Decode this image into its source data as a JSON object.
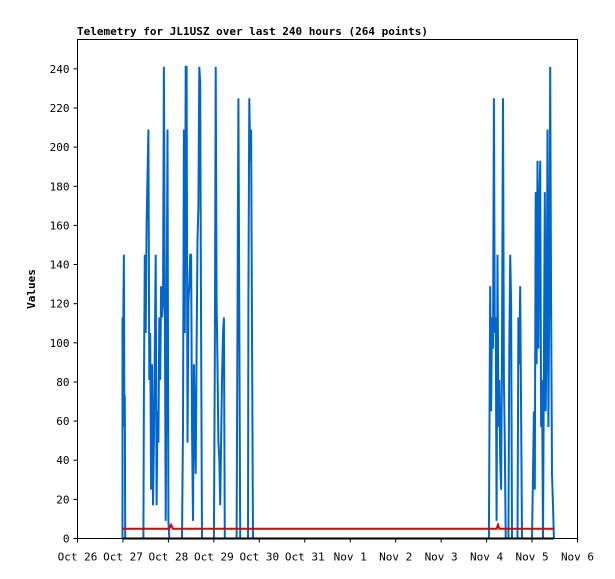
{
  "chart_data": {
    "type": "line",
    "title": "Telemetry for JL1USZ over last 240 hours (264 points)",
    "ylabel": "Values",
    "xlabel": "",
    "x_ticks": [
      "Oct 26",
      "Oct 27",
      "Oct 28",
      "Oct 29",
      "Oct 30",
      "Oct 31",
      "Nov 1",
      "Nov 2",
      "Nov 3",
      "Nov 4",
      "Nov 5",
      "Nov 6"
    ],
    "y_ticks": [
      "0",
      "20",
      "40",
      "60",
      "80",
      "100",
      "120",
      "140",
      "160",
      "180",
      "200",
      "220",
      "240"
    ],
    "xlim": [
      0,
      11
    ],
    "ylim": [
      0,
      255
    ],
    "grid": false,
    "legend": "none",
    "colors": {
      "blue_series": "#0066cc",
      "red_series": "#dd0000",
      "black_series": "#000000"
    },
    "series": [
      {
        "color": "#0066cc",
        "points": [
          [
            0.99,
            0
          ],
          [
            0.99,
            113
          ],
          [
            1.0,
            57
          ],
          [
            1.01,
            121
          ],
          [
            1.02,
            145
          ],
          [
            1.03,
            65
          ],
          [
            1.04,
            73
          ],
          [
            1.05,
            0
          ],
          [
            1.45,
            0
          ],
          [
            1.46,
            73
          ],
          [
            1.48,
            145
          ],
          [
            1.5,
            105
          ],
          [
            1.52,
            161
          ],
          [
            1.54,
            185
          ],
          [
            1.56,
            209
          ],
          [
            1.58,
            81
          ],
          [
            1.6,
            105
          ],
          [
            1.62,
            25
          ],
          [
            1.64,
            89
          ],
          [
            1.66,
            17
          ],
          [
            1.68,
            49
          ],
          [
            1.7,
            97
          ],
          [
            1.72,
            145
          ],
          [
            1.74,
            17
          ],
          [
            1.76,
            65
          ],
          [
            1.78,
            49
          ],
          [
            1.8,
            113
          ],
          [
            1.82,
            81
          ],
          [
            1.84,
            129
          ],
          [
            1.86,
            113
          ],
          [
            1.88,
            121
          ],
          [
            1.9,
            241
          ],
          [
            1.92,
            121
          ],
          [
            1.94,
            9
          ],
          [
            1.96,
            105
          ],
          [
            1.98,
            209
          ],
          [
            2.0,
            9
          ],
          [
            2.02,
            0
          ],
          [
            2.3,
            0
          ],
          [
            2.32,
            57
          ],
          [
            2.34,
            209
          ],
          [
            2.36,
            105
          ],
          [
            2.38,
            241
          ],
          [
            2.4,
            241
          ],
          [
            2.42,
            49
          ],
          [
            2.44,
            121
          ],
          [
            2.46,
            129
          ],
          [
            2.48,
            145
          ],
          [
            2.5,
            145
          ],
          [
            2.52,
            57
          ],
          [
            2.54,
            9
          ],
          [
            2.56,
            89
          ],
          [
            2.58,
            57
          ],
          [
            2.6,
            33
          ],
          [
            2.62,
            97
          ],
          [
            2.64,
            153
          ],
          [
            2.66,
            169
          ],
          [
            2.68,
            241
          ],
          [
            2.7,
            233
          ],
          [
            2.72,
            105
          ],
          [
            2.74,
            0
          ],
          [
            3.0,
            0
          ],
          [
            3.02,
            89
          ],
          [
            3.04,
            241
          ],
          [
            3.06,
            121
          ],
          [
            3.08,
            89
          ],
          [
            3.1,
            49
          ],
          [
            3.12,
            41
          ],
          [
            3.14,
            17
          ],
          [
            3.16,
            49
          ],
          [
            3.18,
            81
          ],
          [
            3.2,
            105
          ],
          [
            3.22,
            113
          ],
          [
            3.24,
            0
          ],
          [
            3.5,
            0
          ],
          [
            3.52,
            113
          ],
          [
            3.54,
            225
          ],
          [
            3.56,
            113
          ],
          [
            3.58,
            0
          ],
          [
            3.75,
            0
          ],
          [
            3.76,
            121
          ],
          [
            3.78,
            225
          ],
          [
            3.8,
            193
          ],
          [
            3.82,
            209
          ],
          [
            3.84,
            105
          ],
          [
            3.86,
            0
          ],
          [
            9.05,
            0
          ],
          [
            9.06,
            41
          ],
          [
            9.08,
            129
          ],
          [
            9.1,
            65
          ],
          [
            9.12,
            113
          ],
          [
            9.14,
            97
          ],
          [
            9.16,
            225
          ],
          [
            9.18,
            105
          ],
          [
            9.2,
            113
          ],
          [
            9.22,
            9
          ],
          [
            9.24,
            145
          ],
          [
            9.26,
            57
          ],
          [
            9.28,
            81
          ],
          [
            9.3,
            41
          ],
          [
            9.32,
            25
          ],
          [
            9.34,
            97
          ],
          [
            9.36,
            225
          ],
          [
            9.38,
            81
          ],
          [
            9.4,
            49
          ],
          [
            9.42,
            0
          ],
          [
            9.48,
            0
          ],
          [
            9.5,
            97
          ],
          [
            9.52,
            145
          ],
          [
            9.54,
            121
          ],
          [
            9.56,
            0
          ],
          [
            9.68,
            0
          ],
          [
            9.7,
            113
          ],
          [
            9.72,
            89
          ],
          [
            9.74,
            129
          ],
          [
            9.76,
            65
          ],
          [
            9.78,
            0
          ],
          [
            10.0,
            0
          ],
          [
            10.02,
            33
          ],
          [
            10.04,
            65
          ],
          [
            10.06,
            25
          ],
          [
            10.08,
            177
          ],
          [
            10.1,
            89
          ],
          [
            10.12,
            193
          ],
          [
            10.14,
            97
          ],
          [
            10.16,
            169
          ],
          [
            10.18,
            193
          ],
          [
            10.2,
            57
          ],
          [
            10.22,
            81
          ],
          [
            10.24,
            0
          ],
          [
            10.26,
            89
          ],
          [
            10.28,
            177
          ],
          [
            10.3,
            65
          ],
          [
            10.32,
            105
          ],
          [
            10.34,
            209
          ],
          [
            10.36,
            57
          ],
          [
            10.38,
            129
          ],
          [
            10.4,
            241
          ],
          [
            10.42,
            121
          ],
          [
            10.44,
            33
          ],
          [
            10.46,
            17
          ],
          [
            10.48,
            0
          ]
        ]
      },
      {
        "color": "#dd0000",
        "points": [
          [
            0.99,
            5
          ],
          [
            2.02,
            5
          ],
          [
            2.06,
            7
          ],
          [
            2.1,
            5
          ],
          [
            9.22,
            5
          ],
          [
            9.25,
            7
          ],
          [
            9.28,
            5
          ],
          [
            10.48,
            5
          ]
        ]
      },
      {
        "color": "#000000",
        "points": [
          [
            0.99,
            0
          ],
          [
            10.48,
            0
          ]
        ]
      }
    ]
  }
}
